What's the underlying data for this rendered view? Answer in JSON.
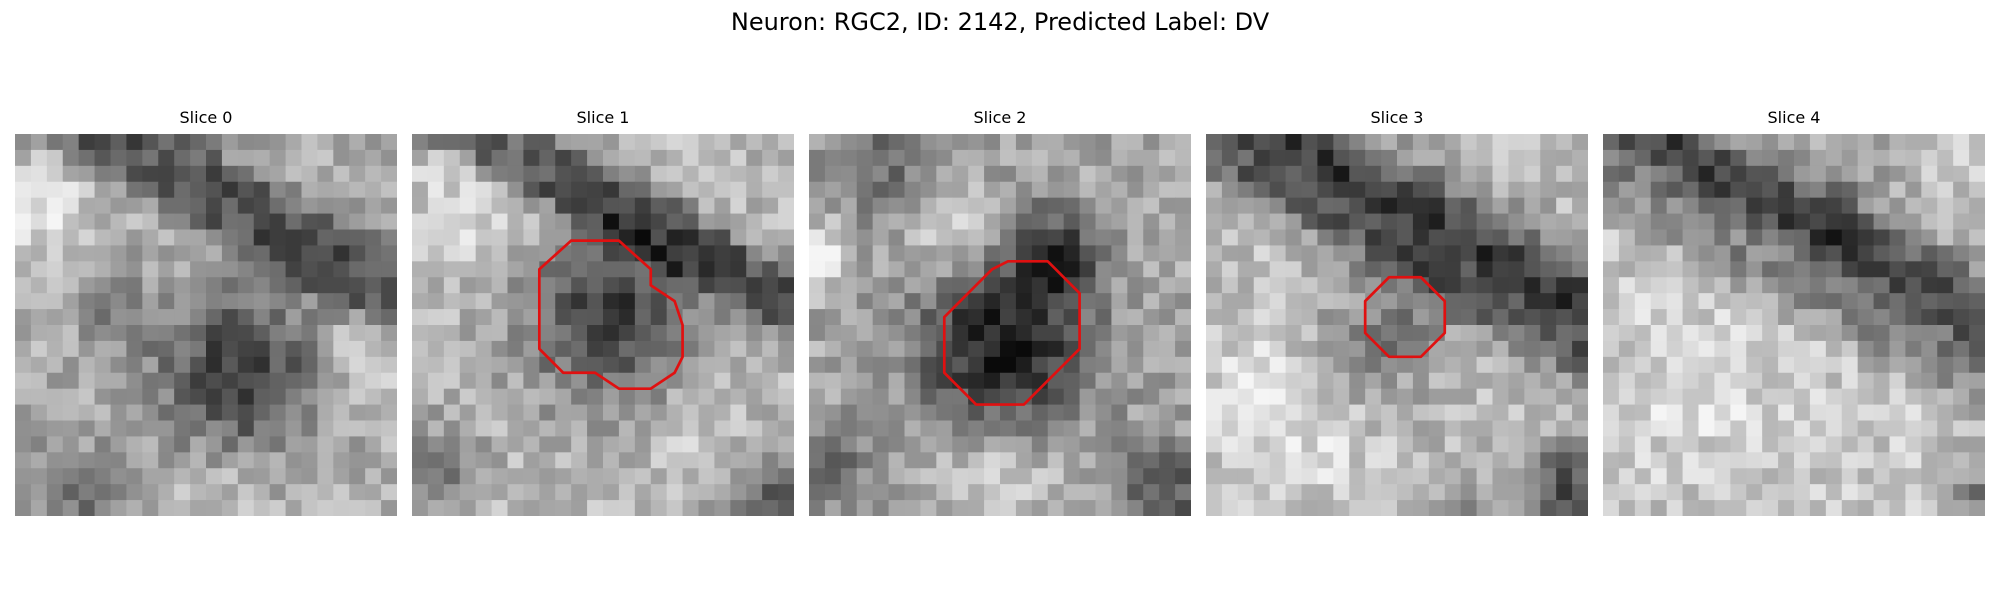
{
  "figure": {
    "title": "Neuron: RGC2, ID: 2142, Predicted Label: DV",
    "roi_color": "#e01010"
  },
  "panels": [
    {
      "title": "Slice 0",
      "has_roi": false
    },
    {
      "title": "Slice 1",
      "has_roi": true
    },
    {
      "title": "Slice 2",
      "has_roi": true
    },
    {
      "title": "Slice 3",
      "has_roi": true
    },
    {
      "title": "Slice 4",
      "has_roi": false
    }
  ]
}
